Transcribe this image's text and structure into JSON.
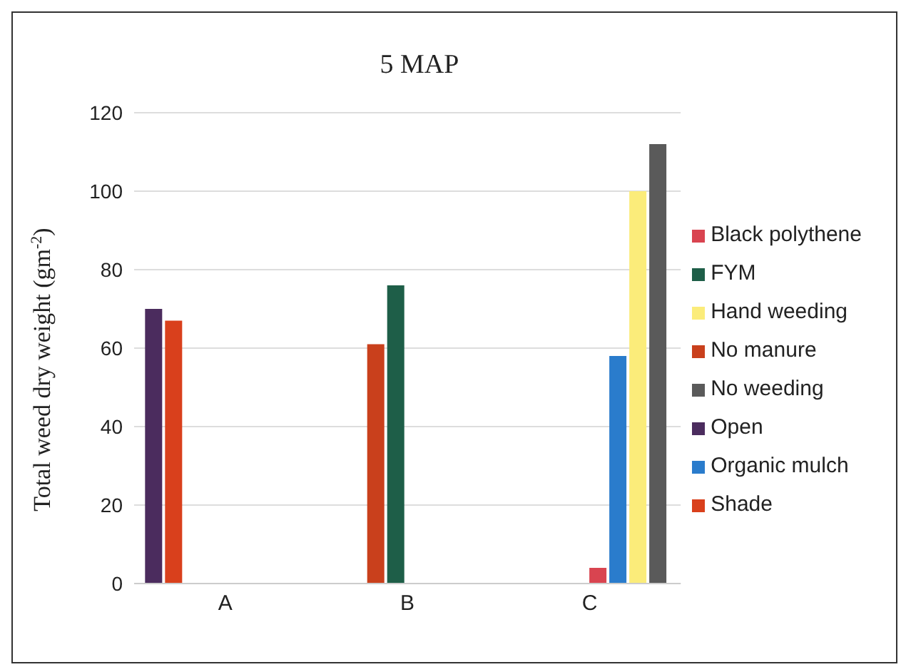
{
  "chart_data": {
    "type": "bar",
    "title": "5 MAP",
    "ylabel": "Total weed dry weight (gm$^{-2}$)",
    "categories": [
      "A",
      "B",
      "C"
    ],
    "series": [
      {
        "name": "Open",
        "color": "#4b2c5e",
        "values": [
          70,
          null,
          null
        ]
      },
      {
        "name": "Shade",
        "color": "#d9401c",
        "values": [
          67,
          null,
          null
        ]
      },
      {
        "name": "No manure",
        "color": "#c9401c",
        "values": [
          null,
          61,
          null
        ]
      },
      {
        "name": "FYM",
        "color": "#1e5e48",
        "values": [
          null,
          76,
          null
        ]
      },
      {
        "name": "Black polythene",
        "color": "#d94450",
        "values": [
          null,
          null,
          4
        ]
      },
      {
        "name": "Organic mulch",
        "color": "#2a7ccc",
        "values": [
          null,
          null,
          58
        ]
      },
      {
        "name": "Hand weeding",
        "color": "#fbec7a",
        "values": [
          null,
          null,
          100
        ]
      },
      {
        "name": "No weeding",
        "color": "#5a5a5a",
        "values": [
          null,
          null,
          112
        ]
      }
    ],
    "ylim": [
      0,
      120
    ],
    "yticks": [
      0,
      20,
      40,
      60,
      80,
      100,
      120
    ],
    "grid": "y",
    "legend": "right"
  }
}
